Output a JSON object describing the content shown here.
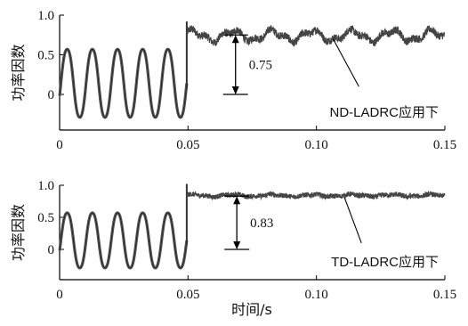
{
  "figure": {
    "xlabel": "时间/s"
  },
  "chart_data": [
    {
      "type": "line",
      "ylabel": "功率因数",
      "xlim": [
        0,
        0.15
      ],
      "ylim": [
        -0.42,
        1.0
      ],
      "xticks": [
        0,
        0.05,
        0.1,
        0.15
      ],
      "xtick_labels": [
        "0",
        "0.05",
        "0.10",
        "0.15"
      ],
      "yticks": [
        0,
        0.5,
        1.0
      ],
      "ytick_labels": [
        "0",
        "0.5",
        "1.0"
      ],
      "series": [
        {
          "pre_disturbance": {
            "x_start": 0.0,
            "x_end": 0.0495,
            "center": 0.14,
            "amplitude": 0.45,
            "period": 0.0098
          },
          "after": {
            "x_start": 0.0495,
            "x_end": 0.15,
            "mean": 0.74,
            "ripple": 0.06,
            "noise_band": 0.05
          }
        }
      ],
      "annotations": [
        {
          "text": "0.75",
          "arrow_x": 0.0685,
          "from_y": 0.0,
          "to_y": 0.75
        },
        {
          "text": "ND-LADRC应用下",
          "pointer_from": [
            0.1165,
            0.1
          ],
          "pointer_to": [
            0.1065,
            0.7
          ]
        }
      ]
    },
    {
      "type": "line",
      "ylabel": "功率因数",
      "xlim": [
        0,
        0.15
      ],
      "ylim": [
        -0.42,
        1.0
      ],
      "xticks": [
        0,
        0.05,
        0.1,
        0.15
      ],
      "xtick_labels": [
        "0",
        "0.05",
        "0.10",
        "0.15"
      ],
      "yticks": [
        0,
        0.5,
        1.0
      ],
      "ytick_labels": [
        "0",
        "0.5",
        "1.0"
      ],
      "series": [
        {
          "pre_disturbance": {
            "x_start": 0.0,
            "x_end": 0.0495,
            "center": 0.14,
            "amplitude": 0.45,
            "period": 0.0098
          },
          "after": {
            "x_start": 0.0495,
            "x_end": 0.15,
            "mean": 0.84,
            "ripple": 0.015,
            "noise_band": 0.04
          }
        }
      ],
      "annotations": [
        {
          "text": "0.83",
          "arrow_x": 0.069,
          "from_y": 0.0,
          "to_y": 0.83
        },
        {
          "text": "TD-LADRC应用下",
          "pointer_from": [
            0.1175,
            0.1
          ],
          "pointer_to": [
            0.111,
            0.8
          ]
        }
      ]
    }
  ]
}
